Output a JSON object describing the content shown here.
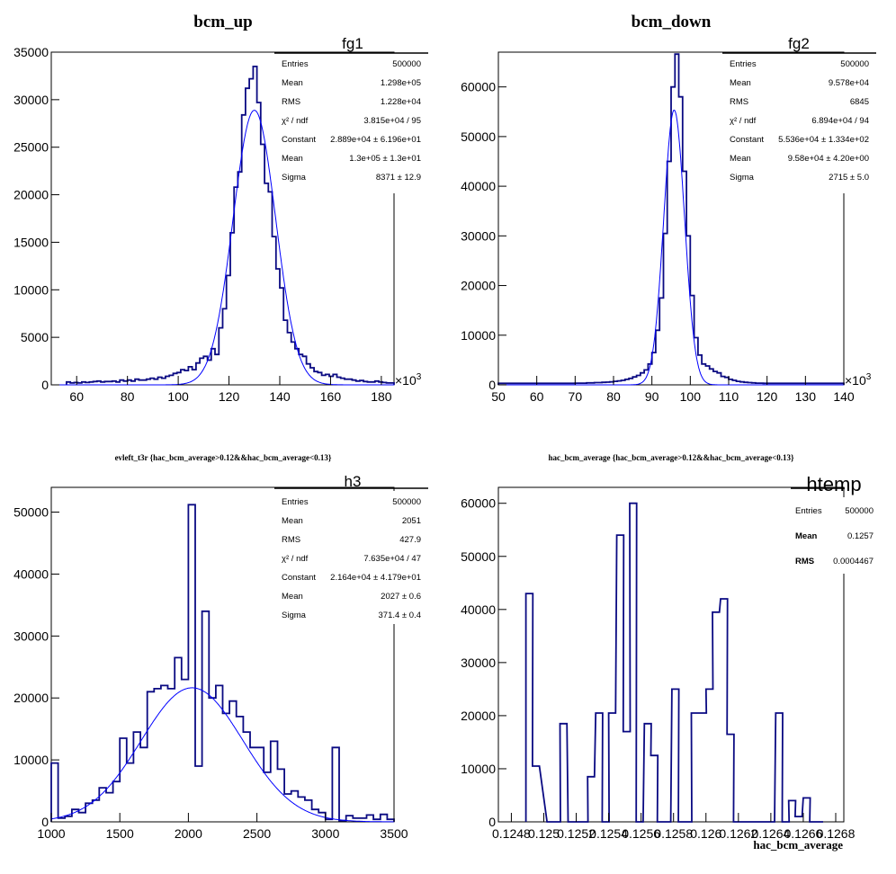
{
  "chart_data": [
    {
      "type": "bar",
      "title": "bcm_up",
      "name": "fg1",
      "xlim": [
        50,
        185
      ],
      "ylim": [
        0,
        35000
      ],
      "x_ticks": [
        60,
        80,
        100,
        120,
        140,
        160,
        180
      ],
      "y_ticks": [
        0,
        5000,
        10000,
        15000,
        20000,
        25000,
        30000,
        35000
      ],
      "x_exponent_label": "×10",
      "x_exponent": "3",
      "stats": [
        [
          "Entries",
          "500000"
        ],
        [
          "Mean",
          "1.298e+05"
        ],
        [
          "RMS",
          "1.228e+04"
        ],
        [
          "χ² / ndf",
          "3.815e+04 / 95"
        ],
        [
          "Constant",
          "2.889e+04 ± 6.196e+01"
        ],
        [
          "Mean",
          "1.3e+05 ± 1.3e+01"
        ],
        [
          "Sigma",
          "8371 ± 12.9"
        ]
      ],
      "bin_width": 1.5,
      "bins": [
        [
          56,
          300
        ],
        [
          57.5,
          200
        ],
        [
          59,
          250
        ],
        [
          60.5,
          200
        ],
        [
          62,
          300
        ],
        [
          63.5,
          250
        ],
        [
          65,
          300
        ],
        [
          66.5,
          350
        ],
        [
          68,
          400
        ],
        [
          69.5,
          300
        ],
        [
          71,
          350
        ],
        [
          72.5,
          350
        ],
        [
          74,
          400
        ],
        [
          75.5,
          300
        ],
        [
          77,
          500
        ],
        [
          78.5,
          400
        ],
        [
          80,
          500
        ],
        [
          81.5,
          400
        ],
        [
          83,
          600
        ],
        [
          84.5,
          500
        ],
        [
          86,
          500
        ],
        [
          87.5,
          600
        ],
        [
          89,
          700
        ],
        [
          90.5,
          600
        ],
        [
          92,
          800
        ],
        [
          93.5,
          700
        ],
        [
          95,
          900
        ],
        [
          96.5,
          1000
        ],
        [
          98,
          1200
        ],
        [
          99.5,
          1300
        ],
        [
          101,
          1600
        ],
        [
          102.5,
          1500
        ],
        [
          104,
          1900
        ],
        [
          105.5,
          1600
        ],
        [
          107,
          2300
        ],
        [
          108.5,
          2800
        ],
        [
          110,
          3000
        ],
        [
          111.5,
          2600
        ],
        [
          113,
          3800
        ],
        [
          114.5,
          3200
        ],
        [
          116,
          6000
        ],
        [
          117.5,
          8000
        ],
        [
          119,
          11500
        ],
        [
          120.5,
          16000
        ],
        [
          122,
          20800
        ],
        [
          123.5,
          22400
        ],
        [
          125,
          28400
        ],
        [
          126.5,
          31200
        ],
        [
          128,
          32200
        ],
        [
          129.5,
          33500
        ],
        [
          131,
          29700
        ],
        [
          132.5,
          25300
        ],
        [
          134,
          21200
        ],
        [
          135.5,
          20300
        ],
        [
          137,
          15600
        ],
        [
          138.5,
          12200
        ],
        [
          140,
          10200
        ],
        [
          141.5,
          6800
        ],
        [
          143,
          5500
        ],
        [
          144.5,
          4500
        ],
        [
          146,
          3800
        ],
        [
          147.5,
          3200
        ],
        [
          149,
          3000
        ],
        [
          150.5,
          2200
        ],
        [
          152,
          1800
        ],
        [
          153.5,
          1400
        ],
        [
          155,
          1300
        ],
        [
          156.5,
          1000
        ],
        [
          158,
          1100
        ],
        [
          159.5,
          900
        ],
        [
          161,
          1100
        ],
        [
          162.5,
          800
        ],
        [
          164,
          700
        ],
        [
          165.5,
          600
        ],
        [
          167,
          600
        ],
        [
          168.5,
          500
        ],
        [
          170,
          400
        ],
        [
          171.5,
          450
        ],
        [
          173,
          350
        ],
        [
          174.5,
          300
        ],
        [
          176,
          300
        ],
        [
          177.5,
          400
        ],
        [
          179,
          300
        ],
        [
          180.5,
          250
        ],
        [
          182,
          200
        ],
        [
          183.5,
          200
        ]
      ],
      "fit": {
        "constant": 28890,
        "mean": 130,
        "sigma": 8.371
      }
    },
    {
      "type": "bar",
      "title": "bcm_down",
      "name": "fg2",
      "xlim": [
        50,
        140
      ],
      "ylim": [
        0,
        67000
      ],
      "x_ticks": [
        50,
        60,
        70,
        80,
        90,
        100,
        110,
        120,
        130,
        140
      ],
      "y_ticks": [
        0,
        10000,
        20000,
        30000,
        40000,
        50000,
        60000
      ],
      "x_exponent_label": "×10",
      "x_exponent": "3",
      "stats": [
        [
          "Entries",
          "500000"
        ],
        [
          "Mean",
          "9.578e+04"
        ],
        [
          "RMS",
          "6845"
        ],
        [
          "χ² / ndf",
          "6.894e+04 / 94"
        ],
        [
          "Constant",
          "5.536e+04 ± 1.334e+02"
        ],
        [
          "Mean",
          "9.58e+04 ± 4.20e+00"
        ],
        [
          "Sigma",
          "2715 ± 5.0"
        ]
      ],
      "bin_width": 1,
      "bins": [
        [
          50,
          300
        ],
        [
          51,
          300
        ],
        [
          52,
          300
        ],
        [
          53,
          300
        ],
        [
          54,
          300
        ],
        [
          55,
          300
        ],
        [
          56,
          300
        ],
        [
          57,
          300
        ],
        [
          58,
          300
        ],
        [
          59,
          300
        ],
        [
          60,
          300
        ],
        [
          61,
          300
        ],
        [
          62,
          300
        ],
        [
          63,
          300
        ],
        [
          64,
          300
        ],
        [
          65,
          300
        ],
        [
          66,
          300
        ],
        [
          67,
          300
        ],
        [
          68,
          300
        ],
        [
          69,
          300
        ],
        [
          70,
          350
        ],
        [
          71,
          350
        ],
        [
          72,
          350
        ],
        [
          73,
          400
        ],
        [
          74,
          400
        ],
        [
          75,
          450
        ],
        [
          76,
          450
        ],
        [
          77,
          500
        ],
        [
          78,
          550
        ],
        [
          79,
          600
        ],
        [
          80,
          700
        ],
        [
          81,
          800
        ],
        [
          82,
          900
        ],
        [
          83,
          1100
        ],
        [
          84,
          1300
        ],
        [
          85,
          1600
        ],
        [
          86,
          1900
        ],
        [
          87,
          2400
        ],
        [
          88,
          3000
        ],
        [
          89,
          4200
        ],
        [
          90,
          6500
        ],
        [
          91,
          11000
        ],
        [
          92,
          17500
        ],
        [
          93,
          30500
        ],
        [
          94,
          45000
        ],
        [
          95,
          60000
        ],
        [
          96,
          66600
        ],
        [
          97,
          58000
        ],
        [
          98,
          43000
        ],
        [
          99,
          30000
        ],
        [
          100,
          18000
        ],
        [
          101,
          9500
        ],
        [
          102,
          6000
        ],
        [
          103,
          4200
        ],
        [
          104,
          3800
        ],
        [
          105,
          3200
        ],
        [
          106,
          2700
        ],
        [
          107,
          2400
        ],
        [
          108,
          1700
        ],
        [
          109,
          1500
        ],
        [
          110,
          1100
        ],
        [
          111,
          900
        ],
        [
          112,
          700
        ],
        [
          113,
          600
        ],
        [
          114,
          500
        ],
        [
          115,
          450
        ],
        [
          116,
          400
        ],
        [
          117,
          350
        ],
        [
          118,
          350
        ],
        [
          119,
          300
        ],
        [
          120,
          300
        ],
        [
          121,
          300
        ],
        [
          122,
          300
        ],
        [
          123,
          300
        ],
        [
          124,
          300
        ],
        [
          125,
          300
        ],
        [
          126,
          300
        ],
        [
          127,
          300
        ],
        [
          128,
          300
        ],
        [
          129,
          300
        ],
        [
          130,
          300
        ],
        [
          131,
          300
        ],
        [
          132,
          300
        ],
        [
          133,
          300
        ],
        [
          134,
          300
        ],
        [
          135,
          300
        ],
        [
          136,
          300
        ],
        [
          137,
          300
        ],
        [
          138,
          300
        ],
        [
          139,
          300
        ]
      ],
      "fit": {
        "constant": 55360,
        "mean": 95.8,
        "sigma": 2.715
      }
    },
    {
      "type": "bar",
      "title": "evleft_t3r {hac_bcm_average>0.12&&hac_bcm_average<0.13}",
      "name": "h3",
      "xlim": [
        1000,
        3500
      ],
      "ylim": [
        0,
        54000
      ],
      "x_ticks": [
        1000,
        1500,
        2000,
        2500,
        3000,
        3500
      ],
      "y_ticks": [
        0,
        10000,
        20000,
        30000,
        40000,
        50000
      ],
      "stats": [
        [
          "Entries",
          "500000"
        ],
        [
          "Mean",
          "2051"
        ],
        [
          "RMS",
          "427.9"
        ],
        [
          "χ² / ndf",
          "7.635e+04 / 47"
        ],
        [
          "Constant",
          "2.164e+04 ± 4.179e+01"
        ],
        [
          "Mean",
          "2027 ± 0.6"
        ],
        [
          "Sigma",
          "371.4 ± 0.4"
        ]
      ],
      "bin_width": 50,
      "bins": [
        [
          1000,
          9500
        ],
        [
          1050,
          600
        ],
        [
          1100,
          900
        ],
        [
          1150,
          2000
        ],
        [
          1200,
          1500
        ],
        [
          1250,
          3000
        ],
        [
          1300,
          3500
        ],
        [
          1350,
          5500
        ],
        [
          1400,
          4700
        ],
        [
          1450,
          6500
        ],
        [
          1500,
          13500
        ],
        [
          1550,
          9500
        ],
        [
          1600,
          14500
        ],
        [
          1650,
          12000
        ],
        [
          1700,
          21000
        ],
        [
          1750,
          21500
        ],
        [
          1800,
          22000
        ],
        [
          1850,
          21500
        ],
        [
          1900,
          26500
        ],
        [
          1950,
          23000
        ],
        [
          2000,
          51200
        ],
        [
          2050,
          9000
        ],
        [
          2100,
          34000
        ],
        [
          2150,
          20000
        ],
        [
          2200,
          22000
        ],
        [
          2250,
          17500
        ],
        [
          2300,
          19500
        ],
        [
          2350,
          17000
        ],
        [
          2400,
          14500
        ],
        [
          2450,
          12000
        ],
        [
          2500,
          12000
        ],
        [
          2550,
          8000
        ],
        [
          2600,
          13000
        ],
        [
          2650,
          8500
        ],
        [
          2700,
          4500
        ],
        [
          2750,
          5000
        ],
        [
          2800,
          4000
        ],
        [
          2850,
          3500
        ],
        [
          2900,
          2000
        ],
        [
          2950,
          1500
        ],
        [
          3000,
          400
        ],
        [
          3050,
          12000
        ],
        [
          3100,
          200
        ],
        [
          3150,
          1000
        ],
        [
          3200,
          600
        ],
        [
          3250,
          600
        ],
        [
          3300,
          1100
        ],
        [
          3350,
          400
        ],
        [
          3400,
          1200
        ],
        [
          3450,
          400
        ]
      ],
      "fit": {
        "constant": 21640,
        "mean": 2027,
        "sigma": 371.4
      }
    },
    {
      "type": "bar",
      "title": "hac_bcm_average {hac_bcm_average>0.12&&hac_bcm_average<0.13}",
      "name": "htemp",
      "xlabel": "hac_bcm_average",
      "xlim": [
        0.12472,
        0.12685
      ],
      "ylim": [
        0,
        63000
      ],
      "x_tick_labels": [
        "0.1248",
        "0.125",
        "0.1252",
        "0.1254",
        "0.1256",
        "0.1258",
        "0.126",
        "0.1262",
        "0.1264",
        "0.1266",
        "0.1268"
      ],
      "x_tick_values": [
        0.1248,
        0.125,
        0.1252,
        0.1254,
        0.1256,
        0.1258,
        0.126,
        0.1262,
        0.1264,
        0.1266,
        0.1268
      ],
      "y_ticks": [
        0,
        10000,
        20000,
        30000,
        40000,
        50000,
        60000
      ],
      "stats": [
        [
          "Entries",
          "500000"
        ],
        [
          "Mean",
          "0.1257"
        ],
        [
          "RMS",
          "0.0004467"
        ]
      ],
      "bin_width": 4.267e-05,
      "bins": [
        [
          0.12489,
          43000
        ],
        [
          0.12493,
          10500
        ],
        [
          0.12502,
          0
        ],
        [
          0.12506,
          0
        ],
        [
          0.1251,
          18500
        ],
        [
          0.12515,
          0
        ],
        [
          0.12523,
          0
        ],
        [
          0.12527,
          8500
        ],
        [
          0.12532,
          20500
        ],
        [
          0.12536,
          0
        ],
        [
          0.1254,
          20500
        ],
        [
          0.12545,
          54000
        ],
        [
          0.12549,
          17000
        ],
        [
          0.12553,
          60000
        ],
        [
          0.12557,
          0
        ],
        [
          0.12562,
          18500
        ],
        [
          0.12566,
          12500
        ],
        [
          0.1257,
          0
        ],
        [
          0.12574,
          0
        ],
        [
          0.12579,
          25000
        ],
        [
          0.12583,
          0
        ],
        [
          0.12587,
          0
        ],
        [
          0.12591,
          20500
        ],
        [
          0.12596,
          20500
        ],
        [
          0.126,
          25000
        ],
        [
          0.12604,
          39500
        ],
        [
          0.12609,
          42000
        ],
        [
          0.12613,
          16500
        ],
        [
          0.12617,
          0
        ],
        [
          0.12621,
          0
        ],
        [
          0.12626,
          0
        ],
        [
          0.1263,
          0
        ],
        [
          0.12634,
          0
        ],
        [
          0.12638,
          0
        ],
        [
          0.12643,
          20500
        ],
        [
          0.12647,
          0
        ],
        [
          0.12651,
          4000
        ],
        [
          0.12655,
          1000
        ],
        [
          0.1266,
          4500
        ],
        [
          0.12664,
          0
        ],
        [
          0.12668,
          0
        ]
      ]
    }
  ],
  "colors": {
    "hist": "#0a0a82",
    "fit": "#0000ff",
    "axis": "#000000"
  }
}
